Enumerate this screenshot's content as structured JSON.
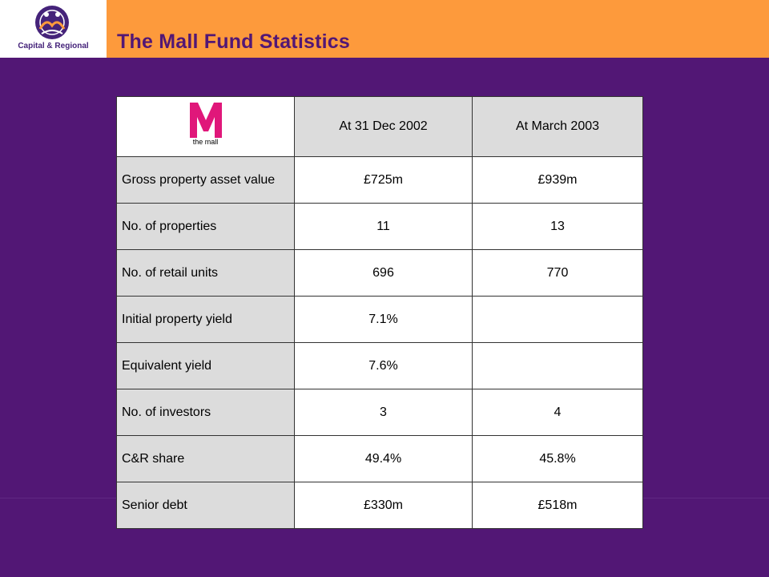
{
  "header": {
    "title": "The Mall Fund Statistics",
    "company_logo_text": "Capital & Regional",
    "company_logo_icon": "capital-regional-logo"
  },
  "colors": {
    "background": "#521775",
    "header_bar": "#fd9a3c",
    "title": "#521775",
    "label_cell": "#dcdcdc",
    "mall_logo": "#e0177a"
  },
  "table": {
    "logo_letter": "M",
    "logo_text": "the mall",
    "columns": [
      "At 31 Dec 2002",
      "At March 2003"
    ],
    "rows": [
      {
        "label": "Gross property asset value",
        "dec2002": "£725m",
        "mar2003": "£939m"
      },
      {
        "label": "No. of properties",
        "dec2002": "11",
        "mar2003": "13"
      },
      {
        "label": "No. of retail units",
        "dec2002": "696",
        "mar2003": "770"
      },
      {
        "label": "Initial property yield",
        "dec2002": "7.1%",
        "mar2003": ""
      },
      {
        "label": "Equivalent yield",
        "dec2002": "7.6%",
        "mar2003": ""
      },
      {
        "label": "No. of investors",
        "dec2002": "3",
        "mar2003": "4"
      },
      {
        "label": "C&R share",
        "dec2002": "49.4%",
        "mar2003": "45.8%"
      },
      {
        "label": "Senior debt",
        "dec2002": "£330m",
        "mar2003": "£518m"
      }
    ]
  }
}
